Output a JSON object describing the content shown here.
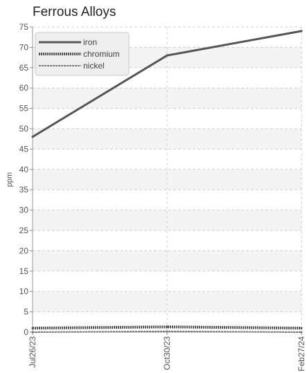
{
  "chart_data": {
    "type": "line",
    "title": "Ferrous Alloys",
    "xlabel": "",
    "ylabel": "ppm",
    "x": [
      "Jul26/23",
      "Oct30/23",
      "Feb27/24"
    ],
    "ylim": [
      0,
      75
    ],
    "y_ticks": [
      0,
      5,
      10,
      15,
      20,
      25,
      30,
      35,
      40,
      45,
      50,
      55,
      60,
      65,
      70,
      75
    ],
    "grid": true,
    "legend_position": "top-left",
    "series": [
      {
        "name": "iron",
        "values": [
          48,
          68,
          74
        ],
        "color": "#555555",
        "style": "solid"
      },
      {
        "name": "chromium",
        "values": [
          1,
          1.3,
          1
        ],
        "color": "#555555",
        "style": "dotted"
      },
      {
        "name": "nickel",
        "values": [
          0,
          0.2,
          0
        ],
        "color": "#777777",
        "style": "dashed"
      }
    ]
  }
}
